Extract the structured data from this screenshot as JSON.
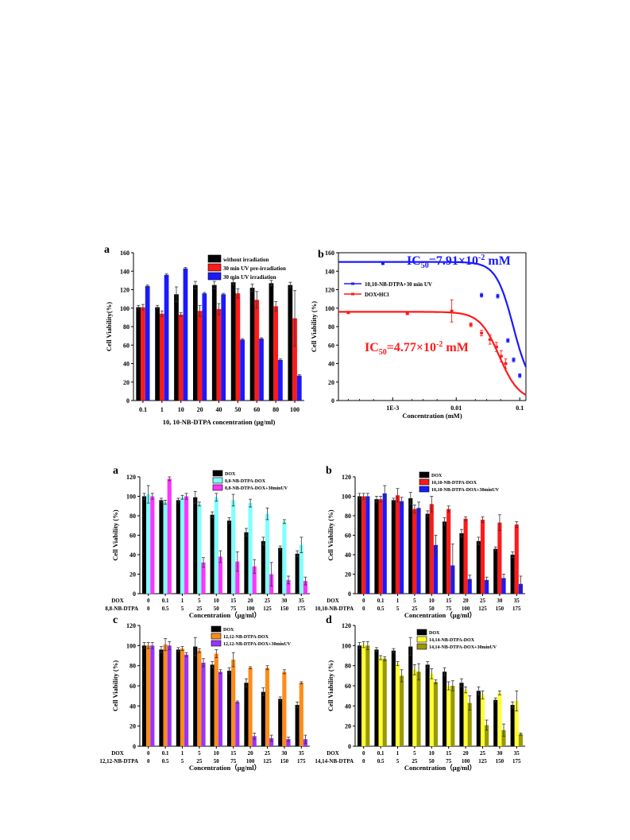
{
  "chart_data": [
    {
      "id": "top-a",
      "panel_label": "a",
      "type": "bar",
      "categories": [
        "0.1",
        "1",
        "10",
        "20",
        "40",
        "50",
        "60",
        "80",
        "100"
      ],
      "series": [
        {
          "name": "without irradiation",
          "color": "#000000",
          "values": [
            101,
            101,
            115,
            125,
            125,
            128,
            122,
            127,
            125
          ],
          "errors": [
            2,
            2,
            8,
            4,
            4,
            3,
            4,
            3,
            3
          ]
        },
        {
          "name": "30 min UV pre-irradiation",
          "color": "#ff1a1a",
          "values": [
            101,
            94,
            93,
            97,
            99,
            116,
            109,
            102,
            89
          ],
          "errors": [
            3,
            3,
            2,
            6,
            6,
            5,
            9,
            5,
            30
          ]
        },
        {
          "name": "30 min UV irradiation",
          "color": "#1a1aff",
          "values": [
            124,
            136,
            143,
            116,
            115,
            66,
            67,
            44,
            27
          ],
          "errors": [
            1,
            1,
            1,
            1,
            1,
            1,
            1,
            1,
            1
          ]
        }
      ],
      "xlabel": "10, 10-NB-DTPA concentration (μg/ml)",
      "ylabel": "Cell Viability(%)",
      "ylim": [
        0,
        160
      ],
      "yticks": [
        "0",
        "20",
        "40",
        "60",
        "80",
        "100",
        "120",
        "140",
        "160"
      ]
    },
    {
      "id": "top-b",
      "panel_label": "b",
      "type": "scatter",
      "x_scale": "log",
      "xlabel": "Concentration (mM)",
      "ylabel": "Cell Viability (%)",
      "ylim": [
        0,
        160
      ],
      "yticks": [
        "0",
        "20",
        "40",
        "60",
        "80",
        "100",
        "120",
        "140",
        "160"
      ],
      "xticks": [
        "1E-3",
        "0.01",
        "0.1"
      ],
      "series": [
        {
          "name": "10,10-NB-DTPA+30 min UV",
          "color": "#1a1aff",
          "x": [
            0.0007,
            0.025,
            0.045,
            0.065,
            0.08,
            0.1
          ],
          "y": [
            148,
            114,
            113,
            65,
            44,
            27
          ],
          "errors": [
            0,
            2,
            2,
            2,
            2,
            2
          ],
          "fit": {
            "top": 150,
            "bottom": 10,
            "ic50": 0.0791,
            "hill": 3.2
          }
        },
        {
          "name": "DOX•HCl",
          "color": "#ff1a1a",
          "x": [
            0.0002,
            0.0017,
            0.0085,
            0.017,
            0.025,
            0.034,
            0.043,
            0.051,
            0.06
          ],
          "y": [
            95,
            94,
            97,
            82,
            73,
            66,
            58,
            48,
            40
          ],
          "errors": [
            1,
            1,
            12,
            2,
            3,
            5,
            5,
            6,
            5
          ],
          "fit": {
            "top": 96,
            "bottom": 0,
            "ic50": 0.0477,
            "hill": 2.8
          }
        }
      ],
      "annotations": [
        {
          "text_main": "IC",
          "text_sub": "50",
          "text_rest": "=7.91×10",
          "text_sup": "-2",
          "text_unit": " mM",
          "color": "#1a1aff"
        },
        {
          "text_main": "IC",
          "text_sub": "50",
          "text_rest": "=4.77×10",
          "text_sup": "-2",
          "text_unit": " mM",
          "color": "#ff1a1a"
        }
      ]
    },
    {
      "id": "bot-a",
      "panel_label": "a",
      "type": "bar",
      "row1_label": "DOX",
      "row2_label": "8,8-NB-DTPA",
      "categories": [
        "0",
        "0.1",
        "1",
        "5",
        "10",
        "15",
        "20",
        "25",
        "30",
        "35"
      ],
      "categories2": [
        "0",
        "0.5",
        "5",
        "25",
        "50",
        "75",
        "100",
        "125",
        "150",
        "175"
      ],
      "series": [
        {
          "name": "DOX",
          "color": "#000000",
          "values": [
            100,
            96,
            96,
            99,
            81,
            75,
            63,
            54,
            47,
            41
          ],
          "errors": [
            3,
            2,
            2,
            6,
            3,
            3,
            4,
            4,
            2,
            3
          ]
        },
        {
          "name": "8,8-NB-DTPA-DOX",
          "color": "#80ffff",
          "values": [
            102,
            94,
            99,
            92,
            99,
            96,
            93,
            82,
            74,
            50
          ],
          "errors": [
            9,
            2,
            2,
            2,
            4,
            6,
            4,
            6,
            2,
            8
          ]
        },
        {
          "name": "8,8-NB-DTPA-DOX+30minUV",
          "color": "#ff33ff",
          "values": [
            100,
            118,
            100,
            32,
            38,
            33,
            28,
            20,
            14,
            13
          ],
          "errors": [
            3,
            2,
            3,
            5,
            6,
            10,
            7,
            12,
            4,
            4
          ]
        }
      ],
      "xlabel": "Concentration（μg/ml）",
      "ylabel": "Cell Viability (%)",
      "ylim": [
        0,
        120
      ],
      "yticks": [
        "0",
        "20",
        "40",
        "60",
        "80",
        "100",
        "120"
      ]
    },
    {
      "id": "bot-b",
      "panel_label": "b",
      "type": "bar",
      "row1_label": "DOX",
      "row2_label": "10,10-NB-DTPA",
      "categories": [
        "0",
        "0.1",
        "1",
        "5",
        "10",
        "15",
        "20",
        "25",
        "30",
        "35"
      ],
      "categories2": [
        "0",
        "0.5",
        "5",
        "25",
        "50",
        "75",
        "100",
        "125",
        "150",
        "175"
      ],
      "series": [
        {
          "name": "DOX",
          "color": "#000000",
          "values": [
            100,
            97,
            96,
            98,
            82,
            74,
            62,
            54,
            46,
            40
          ],
          "errors": [
            3,
            3,
            2,
            6,
            3,
            4,
            4,
            4,
            2,
            3
          ]
        },
        {
          "name": "10,10-NB-DTPA-DOX",
          "color": "#ff1a1a",
          "values": [
            100,
            97,
            101,
            87,
            92,
            87,
            77,
            76,
            73,
            71
          ],
          "errors": [
            3,
            3,
            7,
            4,
            8,
            3,
            2,
            3,
            8,
            3
          ]
        },
        {
          "name": "10,10-NB-DTPA-DOX+30minUV",
          "color": "#1a1aff",
          "values": [
            100,
            103,
            95,
            88,
            50,
            29,
            15,
            14,
            16,
            10
          ],
          "errors": [
            3,
            8,
            4,
            6,
            10,
            22,
            4,
            3,
            4,
            8
          ]
        }
      ],
      "xlabel": "Concentration（μg/ml）",
      "ylabel": "Cell Viability (%)",
      "ylim": [
        0,
        120
      ],
      "yticks": [
        "0",
        "20",
        "40",
        "60",
        "80",
        "100",
        "120"
      ]
    },
    {
      "id": "bot-c",
      "panel_label": "c",
      "type": "bar",
      "row1_label": "DOX",
      "row2_label": "12,12-NB-DTPA",
      "categories": [
        "0",
        "0.1",
        "1",
        "5",
        "10",
        "15",
        "20",
        "25",
        "30",
        "35"
      ],
      "categories2": [
        "0",
        "0.5",
        "5",
        "25",
        "50",
        "75",
        "100",
        "125",
        "150",
        "175"
      ],
      "series": [
        {
          "name": "DOX",
          "color": "#000000",
          "values": [
            100,
            96,
            96,
            99,
            81,
            75,
            63,
            54,
            47,
            41
          ],
          "errors": [
            3,
            3,
            2,
            9,
            3,
            3,
            4,
            4,
            2,
            3
          ]
        },
        {
          "name": "12,12-NB-DTPA-DOX",
          "color": "#ff8c1a",
          "values": [
            100,
            101,
            97,
            95,
            92,
            86,
            78,
            78,
            74,
            63
          ],
          "errors": [
            3,
            6,
            2,
            2,
            4,
            7,
            1,
            2,
            2,
            1
          ]
        },
        {
          "name": "12,12-NB-DTPA-DOX+30minUV",
          "color": "#9933ff",
          "values": [
            100,
            100,
            91,
            83,
            74,
            44,
            10,
            8,
            7,
            7
          ],
          "errors": [
            3,
            4,
            2,
            4,
            2,
            1,
            3,
            3,
            2,
            4
          ]
        }
      ],
      "xlabel": "Concentration（μg/ml）",
      "ylabel": "Cell Viability (%)",
      "ylim": [
        0,
        120
      ],
      "yticks": [
        "0",
        "20",
        "40",
        "60",
        "80",
        "100",
        "120"
      ]
    },
    {
      "id": "bot-d",
      "panel_label": "d",
      "type": "bar",
      "row1_label": "DOX",
      "row2_label": "14,14-NB-DTPA",
      "categories": [
        "0",
        "0.1",
        "1",
        "5",
        "10",
        "15",
        "20",
        "25",
        "30",
        "35"
      ],
      "categories2": [
        "0",
        "0.5",
        "5",
        "25",
        "50",
        "75",
        "100",
        "125",
        "150",
        "175"
      ],
      "series": [
        {
          "name": "DOX",
          "color": "#000000",
          "values": [
            100,
            96,
            95,
            99,
            81,
            74,
            63,
            55,
            46,
            41
          ],
          "errors": [
            3,
            2,
            2,
            9,
            3,
            4,
            4,
            4,
            2,
            3
          ]
        },
        {
          "name": "14,14-NB-DTPA-DOX",
          "color": "#ffff33",
          "values": [
            101,
            88,
            82,
            76,
            72,
            60,
            56,
            51,
            53,
            45
          ],
          "errors": [
            3,
            2,
            2,
            5,
            5,
            4,
            3,
            4,
            2,
            10
          ]
        },
        {
          "name": "14,14-NB-DTPA-DOX+30minUV",
          "color": "#999900",
          "values": [
            100,
            87,
            70,
            74,
            64,
            60,
            43,
            21,
            16,
            12
          ],
          "errors": [
            4,
            2,
            6,
            8,
            2,
            5,
            7,
            5,
            6,
            1
          ]
        }
      ],
      "xlabel": "Concentration（μg/ml）",
      "ylabel": "Cell Viability (%)",
      "ylim": [
        0,
        120
      ],
      "yticks": [
        "0",
        "20",
        "40",
        "60",
        "80",
        "100",
        "120"
      ]
    }
  ]
}
